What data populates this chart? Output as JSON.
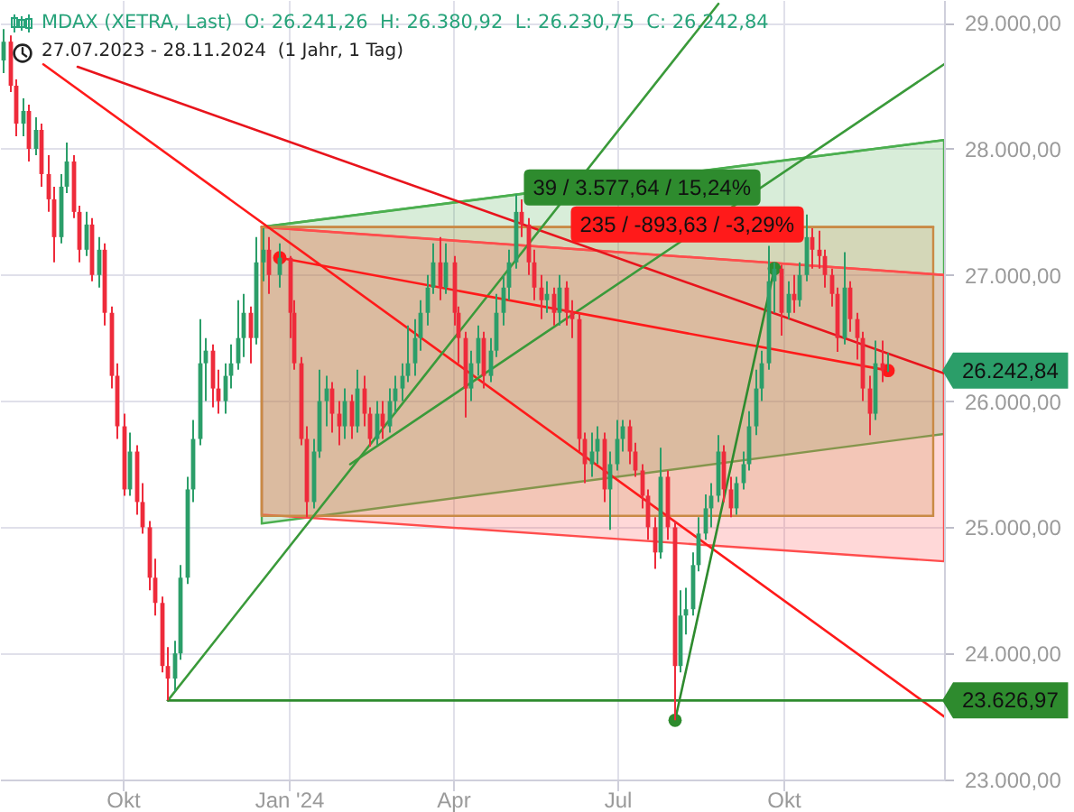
{
  "chart_data": {
    "type": "candlestick",
    "title": "MDAX (XETRA, Last)  O: 26.241,26  H: 26.380,92  L: 26.230,75  C: 26.242,84",
    "subtitle": "27.07.2023 - 28.11.2024  (1 Jahr, 1 Tag)",
    "x": [
      "2023-07-27",
      "2023-07-31",
      "2023-08-03",
      "2023-08-07",
      "2023-08-10",
      "2023-08-14",
      "2023-08-17",
      "2023-08-21",
      "2023-08-24",
      "2023-08-28",
      "2023-08-31",
      "2023-09-04",
      "2023-09-07",
      "2023-09-11",
      "2023-09-14",
      "2023-09-18",
      "2023-09-21",
      "2023-09-25",
      "2023-09-28",
      "2023-10-02",
      "2023-10-05",
      "2023-10-09",
      "2023-10-12",
      "2023-10-16",
      "2023-10-19",
      "2023-10-23",
      "2023-10-26",
      "2023-10-30",
      "2023-11-02",
      "2023-11-06",
      "2023-11-09",
      "2023-11-13",
      "2023-11-16",
      "2023-11-20",
      "2023-11-23",
      "2023-11-27",
      "2023-11-30",
      "2023-12-04",
      "2023-12-07",
      "2023-12-11",
      "2023-12-14",
      "2023-12-18",
      "2023-12-21",
      "2023-12-27",
      "2024-01-02",
      "2024-01-04",
      "2024-01-08",
      "2024-01-11",
      "2024-01-15",
      "2024-01-18",
      "2024-01-22",
      "2024-01-25",
      "2024-01-29",
      "2024-02-01",
      "2024-02-05",
      "2024-02-08",
      "2024-02-12",
      "2024-02-15",
      "2024-02-19",
      "2024-02-22",
      "2024-02-26",
      "2024-02-29",
      "2024-03-04",
      "2024-03-07",
      "2024-03-11",
      "2024-03-14",
      "2024-03-18",
      "2024-03-21",
      "2024-03-25",
      "2024-03-28",
      "2024-04-02",
      "2024-04-04",
      "2024-04-08",
      "2024-04-11",
      "2024-04-15",
      "2024-04-18",
      "2024-04-22",
      "2024-04-25",
      "2024-04-29",
      "2024-05-02",
      "2024-05-06",
      "2024-05-09",
      "2024-05-13",
      "2024-05-16",
      "2024-05-20",
      "2024-05-23",
      "2024-05-27",
      "2024-05-30",
      "2024-06-03",
      "2024-06-06",
      "2024-06-10",
      "2024-06-13",
      "2024-06-17",
      "2024-06-20",
      "2024-06-24",
      "2024-06-27",
      "2024-07-01",
      "2024-07-04",
      "2024-07-08",
      "2024-07-11",
      "2024-07-15",
      "2024-07-18",
      "2024-07-22",
      "2024-07-25",
      "2024-07-29",
      "2024-08-02",
      "2024-08-05",
      "2024-08-08",
      "2024-08-12",
      "2024-08-15",
      "2024-08-19",
      "2024-08-22",
      "2024-08-26",
      "2024-08-29",
      "2024-09-02",
      "2024-09-05",
      "2024-09-09",
      "2024-09-12",
      "2024-09-16",
      "2024-09-19",
      "2024-09-23",
      "2024-09-26",
      "2024-09-30",
      "2024-10-04",
      "2024-10-07",
      "2024-10-10",
      "2024-10-14",
      "2024-10-17",
      "2024-10-21",
      "2024-10-24",
      "2024-10-28",
      "2024-10-31",
      "2024-11-04",
      "2024-11-07",
      "2024-11-11",
      "2024-11-14",
      "2024-11-18",
      "2024-11-21",
      "2024-11-25",
      "2024-11-28"
    ],
    "ohlc": [
      [
        28700,
        28950,
        28600,
        28850
      ],
      [
        28850,
        28900,
        28450,
        28500
      ],
      [
        28500,
        28550,
        28100,
        28200
      ],
      [
        28200,
        28400,
        28100,
        28300
      ],
      [
        28300,
        28350,
        27900,
        28000
      ],
      [
        28000,
        28250,
        27950,
        28150
      ],
      [
        28150,
        28200,
        27700,
        27800
      ],
      [
        27800,
        27950,
        27500,
        27600
      ],
      [
        27600,
        27700,
        27100,
        27300
      ],
      [
        27300,
        27800,
        27250,
        27700
      ],
      [
        27700,
        28050,
        27650,
        27900
      ],
      [
        27900,
        27950,
        27450,
        27500
      ],
      [
        27500,
        27550,
        27100,
        27200
      ],
      [
        27200,
        27500,
        27150,
        27400
      ],
      [
        27400,
        27450,
        26950,
        27000
      ],
      [
        27000,
        27300,
        26900,
        27200
      ],
      [
        27200,
        27250,
        26600,
        26700
      ],
      [
        26700,
        26750,
        26100,
        26200
      ],
      [
        26200,
        26300,
        25700,
        25800
      ],
      [
        25800,
        25900,
        25250,
        25300
      ],
      [
        25300,
        25750,
        25250,
        25600
      ],
      [
        25600,
        25650,
        25100,
        25200
      ],
      [
        25200,
        25350,
        24950,
        25000
      ],
      [
        25000,
        25050,
        24500,
        24600
      ],
      [
        24600,
        24750,
        24300,
        24400
      ],
      [
        24400,
        24450,
        23850,
        23900
      ],
      [
        23900,
        24050,
        23626.97,
        23800
      ],
      [
        23800,
        24100,
        23700,
        24000
      ],
      [
        24000,
        24700,
        23950,
        24600
      ],
      [
        24600,
        25400,
        24550,
        25300
      ],
      [
        25300,
        25850,
        25200,
        25700
      ],
      [
        25700,
        26650,
        25650,
        26300
      ],
      [
        26300,
        26500,
        26000,
        26400
      ],
      [
        26400,
        26450,
        25950,
        26100
      ],
      [
        26100,
        26250,
        25900,
        26000
      ],
      [
        26000,
        26300,
        25900,
        26200
      ],
      [
        26200,
        26450,
        26100,
        26300
      ],
      [
        26300,
        26800,
        26250,
        26500
      ],
      [
        26500,
        26850,
        26350,
        26700
      ],
      [
        26700,
        26750,
        26300,
        26500
      ],
      [
        26500,
        27300,
        26450,
        27100
      ],
      [
        27100,
        27370,
        26950,
        27200
      ],
      [
        27200,
        27300,
        26850,
        27000
      ],
      [
        27000,
        27250,
        26900,
        27136.47
      ],
      [
        27136.47,
        27150,
        26500,
        26700
      ],
      [
        26700,
        26800,
        26250,
        26300
      ],
      [
        26300,
        26350,
        25650,
        25700
      ],
      [
        25700,
        25800,
        25080,
        25200
      ],
      [
        25200,
        25700,
        25150,
        25600
      ],
      [
        25600,
        26250,
        25550,
        26000
      ],
      [
        26000,
        26200,
        25800,
        26100
      ],
      [
        26100,
        26150,
        25750,
        25900
      ],
      [
        25900,
        26000,
        25650,
        25800
      ],
      [
        25800,
        26100,
        25700,
        26000
      ],
      [
        26000,
        26050,
        25700,
        25800
      ],
      [
        25800,
        26250,
        25750,
        26100
      ],
      [
        26100,
        26200,
        25800,
        25900
      ],
      [
        25900,
        25950,
        25640,
        25700
      ],
      [
        25700,
        26000,
        25650,
        25900
      ],
      [
        25900,
        26000,
        25700,
        25800
      ],
      [
        25800,
        26100,
        25750,
        26000
      ],
      [
        26000,
        26200,
        25900,
        26100
      ],
      [
        26100,
        26300,
        26000,
        26200
      ],
      [
        26200,
        26600,
        26150,
        26300
      ],
      [
        26300,
        26650,
        26200,
        26500
      ],
      [
        26500,
        26800,
        26400,
        26700
      ],
      [
        26700,
        27000,
        26600,
        26900
      ],
      [
        26900,
        27250,
        26850,
        27100
      ],
      [
        27100,
        27300,
        26800,
        26900
      ],
      [
        26900,
        27250,
        26850,
        27100
      ],
      [
        27100,
        27150,
        26600,
        26700
      ],
      [
        26700,
        26750,
        26300,
        26500
      ],
      [
        26500,
        26550,
        25870,
        26100
      ],
      [
        26100,
        26400,
        26000,
        26300
      ],
      [
        26300,
        26600,
        26200,
        26500
      ],
      [
        26500,
        26550,
        26100,
        26200
      ],
      [
        26200,
        26500,
        26150,
        26400
      ],
      [
        26400,
        26850,
        26350,
        26700
      ],
      [
        26700,
        27000,
        26600,
        26900
      ],
      [
        26900,
        27200,
        26800,
        27100
      ],
      [
        27100,
        27640,
        27050,
        27500
      ],
      [
        27500,
        27600,
        27300,
        27400
      ],
      [
        27400,
        27450,
        27000,
        27100
      ],
      [
        27100,
        27200,
        26800,
        26900
      ],
      [
        26900,
        27000,
        26650,
        26800
      ],
      [
        26800,
        26950,
        26700,
        26850
      ],
      [
        26850,
        26900,
        26600,
        26700
      ],
      [
        26700,
        27000,
        26600,
        26900
      ],
      [
        26900,
        26950,
        26600,
        26700
      ],
      [
        26700,
        26800,
        26500,
        26650
      ],
      [
        26650,
        26700,
        25600,
        25700
      ],
      [
        25700,
        25750,
        25350,
        25500
      ],
      [
        25500,
        25750,
        25400,
        25600
      ],
      [
        25600,
        25800,
        25500,
        25700
      ],
      [
        25700,
        25750,
        25200,
        25300
      ],
      [
        25300,
        25600,
        24980,
        25500
      ],
      [
        25500,
        25850,
        25450,
        25700
      ],
      [
        25700,
        25850,
        25600,
        25800
      ],
      [
        25800,
        25850,
        25500,
        25600
      ],
      [
        25600,
        25670,
        25400,
        25450
      ],
      [
        25450,
        25500,
        25150,
        25250
      ],
      [
        25250,
        25300,
        24900,
        25000
      ],
      [
        25000,
        25080,
        24670,
        24800
      ],
      [
        24800,
        25630,
        24750,
        25400
      ],
      [
        25400,
        25450,
        24900,
        25000
      ],
      [
        25000,
        25050,
        23470,
        23900
      ],
      [
        23900,
        24500,
        23850,
        24300
      ],
      [
        24300,
        24520,
        24150,
        24350
      ],
      [
        24350,
        24800,
        24300,
        24700
      ],
      [
        24700,
        25080,
        24650,
        24950
      ],
      [
        24950,
        25260,
        24900,
        25150
      ],
      [
        25150,
        25350,
        25000,
        25250
      ],
      [
        25250,
        25730,
        25200,
        25600
      ],
      [
        25600,
        25650,
        25200,
        25300
      ],
      [
        25300,
        25400,
        25080,
        25150
      ],
      [
        25150,
        25400,
        25100,
        25350
      ],
      [
        25350,
        25600,
        25300,
        25500
      ],
      [
        25500,
        25920,
        25450,
        25800
      ],
      [
        25800,
        26250,
        25730,
        26100
      ],
      [
        26100,
        26400,
        26000,
        26300
      ],
      [
        26300,
        27230,
        26250,
        26950
      ],
      [
        26950,
        27100,
        26700,
        27050
      ],
      [
        27050,
        27080,
        26520,
        26700
      ],
      [
        26700,
        26950,
        26650,
        26850
      ],
      [
        26850,
        27000,
        26700,
        26800
      ],
      [
        26800,
        27100,
        26750,
        27000
      ],
      [
        27000,
        27480,
        26950,
        27300
      ],
      [
        27300,
        27370,
        27050,
        27200
      ],
      [
        27200,
        27350,
        27050,
        27150
      ],
      [
        27150,
        27200,
        26900,
        27000
      ],
      [
        27000,
        27050,
        26750,
        26850
      ],
      [
        26850,
        26900,
        26390,
        26500
      ],
      [
        26500,
        27180,
        26450,
        26900
      ],
      [
        26900,
        26950,
        26550,
        26650
      ],
      [
        26650,
        26700,
        26330,
        26500
      ],
      [
        26500,
        26550,
        26000,
        26100
      ],
      [
        26100,
        26200,
        25730,
        25900
      ],
      [
        25900,
        26480,
        25850,
        26300
      ],
      [
        26300,
        26480,
        26150,
        26250
      ],
      [
        26241.26,
        26380.92,
        26230.75,
        26242.84
      ]
    ],
    "colors": [
      "#2b9e69",
      "#ee2b3b",
      "#ee2b3b",
      "#2b9e69",
      "#ee2b3b",
      "#2b9e69",
      "#ee2b3b",
      "#ee2b3b",
      "#ee2b3b",
      "#2b9e69",
      "#2b9e69",
      "#ee2b3b",
      "#ee2b3b",
      "#2b9e69",
      "#ee2b3b",
      "#2b9e69",
      "#ee2b3b",
      "#ee2b3b",
      "#ee2b3b",
      "#ee2b3b",
      "#2b9e69",
      "#ee2b3b",
      "#ee2b3b",
      "#ee2b3b",
      "#ee2b3b",
      "#ee2b3b",
      "#ee2b3b",
      "#2b9e69",
      "#2b9e69",
      "#2b9e69",
      "#2b9e69",
      "#2b9e69",
      "#2b9e69",
      "#ee2b3b",
      "#ee2b3b",
      "#2b9e69",
      "#2b9e69",
      "#2b9e69",
      "#2b9e69",
      "#ee2b3b",
      "#2b9e69",
      "#2b9e69",
      "#ee2b3b",
      "#2b9e69",
      "#ee2b3b",
      "#ee2b3b",
      "#ee2b3b",
      "#ee2b3b",
      "#2b9e69",
      "#2b9e69",
      "#2b9e69",
      "#ee2b3b",
      "#ee2b3b",
      "#2b9e69",
      "#ee2b3b",
      "#2b9e69",
      "#ee2b3b",
      "#ee2b3b",
      "#2b9e69",
      "#ee2b3b",
      "#2b9e69",
      "#2b9e69",
      "#2b9e69",
      "#2b9e69",
      "#2b9e69",
      "#2b9e69",
      "#2b9e69",
      "#2b9e69",
      "#ee2b3b",
      "#2b9e69",
      "#ee2b3b",
      "#ee2b3b",
      "#ee2b3b",
      "#2b9e69",
      "#2b9e69",
      "#ee2b3b",
      "#2b9e69",
      "#2b9e69",
      "#2b9e69",
      "#2b9e69",
      "#2b9e69",
      "#ee2b3b",
      "#ee2b3b",
      "#ee2b3b",
      "#ee2b3b",
      "#2b9e69",
      "#ee2b3b",
      "#2b9e69",
      "#ee2b3b",
      "#ee2b3b",
      "#ee2b3b",
      "#ee2b3b",
      "#2b9e69",
      "#2b9e69",
      "#ee2b3b",
      "#2b9e69",
      "#2b9e69",
      "#2b9e69",
      "#ee2b3b",
      "#ee2b3b",
      "#ee2b3b",
      "#ee2b3b",
      "#ee2b3b",
      "#2b9e69",
      "#ee2b3b",
      "#ee2b3b",
      "#2b9e69",
      "#2b9e69",
      "#2b9e69",
      "#2b9e69",
      "#2b9e69",
      "#2b9e69",
      "#2b9e69",
      "#ee2b3b",
      "#ee2b3b",
      "#2b9e69",
      "#2b9e69",
      "#2b9e69",
      "#2b9e69",
      "#2b9e69",
      "#2b9e69",
      "#2b9e69",
      "#ee2b3b",
      "#2b9e69",
      "#ee2b3b",
      "#2b9e69",
      "#2b9e69",
      "#ee2b3b",
      "#ee2b3b",
      "#ee2b3b",
      "#ee2b3b",
      "#ee2b3b",
      "#2b9e69",
      "#ee2b3b",
      "#ee2b3b",
      "#ee2b3b",
      "#ee2b3b",
      "#2b9e69",
      "#ee2b3b",
      "#2b9e69"
    ],
    "series": [
      {
        "type": "line",
        "color": "#4caf50",
        "x": [
          "2023-12-17",
          "2024-12-29"
        ],
        "values": [
          27380,
          28070
        ],
        "lower": [
          25030,
          25740
        ],
        "upper": [
          27380,
          28070
        ]
      },
      {
        "type": "line",
        "color": "#ff4d4d",
        "x": [
          "2023-12-17",
          "2024-12-29"
        ],
        "values": [
          27380,
          27000
        ],
        "lower": [
          25100,
          24730
        ],
        "upper": [
          27380,
          27000
        ]
      },
      {
        "type": "line",
        "color": "#c98a45",
        "x": [
          "2023-12-17",
          "2024-12-23"
        ],
        "values": [
          27380,
          27380
        ],
        "lower": [
          25090,
          25090
        ],
        "upper": [
          27380,
          27380
        ]
      },
      {
        "type": "line",
        "color": "#ff1a1a",
        "x": [
          "2023-08-18",
          "2024-12-29"
        ],
        "values": [
          28670,
          23500
        ]
      },
      {
        "type": "line",
        "color": "#e8141c",
        "x": [
          "2023-09-06",
          "2024-12-29"
        ],
        "values": [
          28650,
          26220
        ]
      },
      {
        "type": "line",
        "color": "#3a9a3a",
        "x": [
          "2023-10-26",
          "2024-08-26"
        ],
        "values": [
          23626.97,
          29150
        ]
      },
      {
        "type": "line",
        "color": "#3a9a3a",
        "x": [
          "2024-02-04",
          "2024-12-29"
        ],
        "values": [
          25500,
          28670
        ]
      },
      {
        "type": "line",
        "color": "#2e8b2e",
        "name": "23.626,97",
        "x": [
          "2023-10-26",
          "2024-12-29"
        ],
        "values": [
          23626.97,
          23626.97
        ]
      },
      {
        "type": "line",
        "color": "#ff1a1a",
        "name": "235 / -893,63 / -3,29%",
        "marker": "circle",
        "x": [
          "2023-12-27",
          "2024-11-28"
        ],
        "values": [
          27136.47,
          26242.84
        ]
      },
      {
        "type": "line",
        "color": "#2e8b2e",
        "name": "39 / 3.577,64 / 15,24%",
        "marker": "circle",
        "x": [
          "2024-08-02",
          "2024-09-26"
        ],
        "values": [
          23470,
          27050
        ]
      }
    ],
    "annotations": [
      {
        "text": "26.242,84",
        "x": "2024-12-29",
        "y": 26242.84
      }
    ],
    "xlim": [
      "2023-07-25",
      "2024-12-29"
    ],
    "xticks": [
      {
        "value": "2023-10-01",
        "label": "Okt"
      },
      {
        "value": "2024-01-01",
        "label": "Jan '24"
      },
      {
        "value": "2024-04-01",
        "label": "Apr"
      },
      {
        "value": "2024-07-01",
        "label": "Jul"
      },
      {
        "value": "2024-10-01",
        "label": "Okt"
      }
    ],
    "ylim": [
      23000,
      29180
    ],
    "yticks": [
      {
        "value": 23000,
        "label": "23.000,00"
      },
      {
        "value": 24000,
        "label": "24.000,00"
      },
      {
        "value": 25000,
        "label": "25.000,00"
      },
      {
        "value": 26000,
        "label": "26.000,00"
      },
      {
        "value": 27000,
        "label": "27.000,00"
      },
      {
        "value": 28000,
        "label": "28.000,00"
      },
      {
        "value": 29000,
        "label": "29.000,00"
      }
    ],
    "grid": true
  }
}
